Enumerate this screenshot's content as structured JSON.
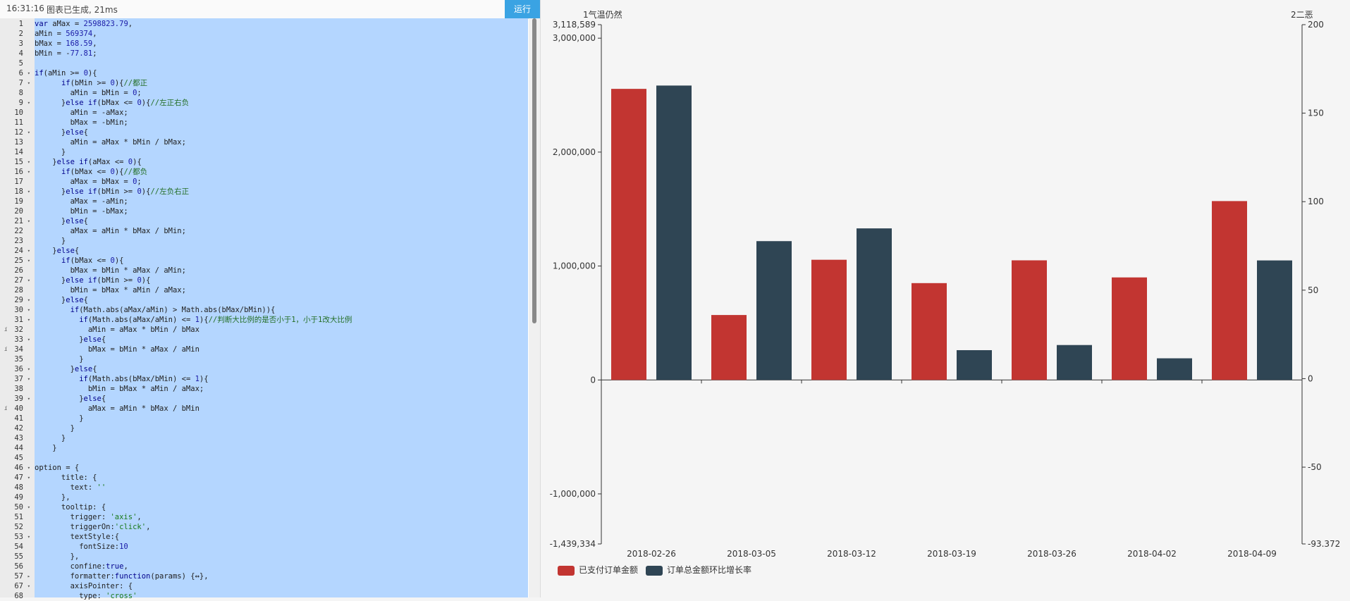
{
  "status": {
    "time": "16:31:16",
    "message": "图表已生成, 21ms"
  },
  "run_button": "运行",
  "code_lines": [
    {
      "n": "1",
      "t": "var aMax = 2598823.79,"
    },
    {
      "n": "2",
      "t": "aMin = 569374,"
    },
    {
      "n": "3",
      "t": "bMax = 168.59,"
    },
    {
      "n": "4",
      "t": "bMin = -77.81;"
    },
    {
      "n": "5",
      "t": ""
    },
    {
      "n": "6",
      "t": "if(aMin >= 0){",
      "fold": true
    },
    {
      "n": "7",
      "t": "      if(bMin >= 0){//都正",
      "fold": true
    },
    {
      "n": "8",
      "t": "        aMin = bMin = 0;"
    },
    {
      "n": "9",
      "t": "      }else if(bMax <= 0){//左正右负",
      "fold": true
    },
    {
      "n": "10",
      "t": "        aMin = -aMax;"
    },
    {
      "n": "11",
      "t": "        bMax = -bMin;"
    },
    {
      "n": "12",
      "t": "      }else{",
      "fold": true
    },
    {
      "n": "13",
      "t": "        aMin = aMax * bMin / bMax;"
    },
    {
      "n": "14",
      "t": "      }"
    },
    {
      "n": "15",
      "t": "    }else if(aMax <= 0){",
      "fold": true
    },
    {
      "n": "16",
      "t": "      if(bMax <= 0){//都负",
      "fold": true
    },
    {
      "n": "17",
      "t": "        aMax = bMax = 0;"
    },
    {
      "n": "18",
      "t": "      }else if(bMin >= 0){//左负右正",
      "fold": true
    },
    {
      "n": "19",
      "t": "        aMax = -aMin;"
    },
    {
      "n": "20",
      "t": "        bMin = -bMax;"
    },
    {
      "n": "21",
      "t": "      }else{",
      "fold": true
    },
    {
      "n": "22",
      "t": "        aMax = aMin * bMax / bMin;"
    },
    {
      "n": "23",
      "t": "      }"
    },
    {
      "n": "24",
      "t": "    }else{",
      "fold": true
    },
    {
      "n": "25",
      "t": "      if(bMax <= 0){",
      "fold": true
    },
    {
      "n": "26",
      "t": "        bMax = bMin * aMax / aMin;"
    },
    {
      "n": "27",
      "t": "      }else if(bMin >= 0){",
      "fold": true
    },
    {
      "n": "28",
      "t": "        bMin = bMax * aMin / aMax;"
    },
    {
      "n": "29",
      "t": "      }else{",
      "fold": true
    },
    {
      "n": "30",
      "t": "        if(Math.abs(aMax/aMin) > Math.abs(bMax/bMin)){",
      "fold": true
    },
    {
      "n": "31",
      "t": "          if(Math.abs(aMax/aMin) <= 1){//判断大比例的是否小于1，小于1改大比例",
      "fold": true
    },
    {
      "n": "32",
      "t": "            aMin = aMax * bMin / bMax",
      "warn": true
    },
    {
      "n": "33",
      "t": "          }else{",
      "fold": true
    },
    {
      "n": "34",
      "t": "            bMax = bMin * aMax / aMin",
      "warn": true
    },
    {
      "n": "35",
      "t": "          }"
    },
    {
      "n": "36",
      "t": "        }else{",
      "fold": true
    },
    {
      "n": "37",
      "t": "          if(Math.abs(bMax/bMin) <= 1){",
      "fold": true
    },
    {
      "n": "38",
      "t": "            bMin = bMax * aMin / aMax;"
    },
    {
      "n": "39",
      "t": "          }else{",
      "fold": true
    },
    {
      "n": "40",
      "t": "            aMax = aMin * bMax / bMin",
      "warn": true
    },
    {
      "n": "41",
      "t": "          }"
    },
    {
      "n": "42",
      "t": "        }"
    },
    {
      "n": "43",
      "t": "      }"
    },
    {
      "n": "44",
      "t": "    }"
    },
    {
      "n": "45",
      "t": ""
    },
    {
      "n": "46",
      "t": "option = {",
      "fold": true
    },
    {
      "n": "47",
      "t": "      title: {",
      "fold": true
    },
    {
      "n": "48",
      "t": "        text: ''"
    },
    {
      "n": "49",
      "t": "      },"
    },
    {
      "n": "50",
      "t": "      tooltip: {",
      "fold": true
    },
    {
      "n": "51",
      "t": "        trigger: 'axis',"
    },
    {
      "n": "52",
      "t": "        triggerOn:'click',"
    },
    {
      "n": "53",
      "t": "        textStyle:{",
      "fold": true
    },
    {
      "n": "54",
      "t": "          fontSize:10"
    },
    {
      "n": "55",
      "t": "        },"
    },
    {
      "n": "56",
      "t": "        confine:true,"
    },
    {
      "n": "57",
      "t": "        formatter:function(params) {↔},",
      "foldr": true
    },
    {
      "n": "67",
      "t": "        axisPointer: {",
      "fold": true
    },
    {
      "n": "68",
      "t": "          type: 'cross'"
    }
  ],
  "chart_data": {
    "type": "bar",
    "categories": [
      "2018-02-26",
      "2018-03-05",
      "2018-03-12",
      "2018-03-19",
      "2018-03-26",
      "2018-04-02",
      "2018-04-09"
    ],
    "y_left": {
      "name": "1气温仍然",
      "min": -1439334,
      "max": 3118589,
      "ticks": [
        -1000000,
        0,
        1000000,
        2000000,
        3000000
      ],
      "tick_labels": [
        "-1,000,000",
        "0",
        "1,000,000",
        "2,000,000",
        "3,000,000"
      ],
      "min_label": "-1,439,334",
      "max_label": "3,118,589"
    },
    "y_right": {
      "name": "2二恶",
      "min": -93.372,
      "max": 200,
      "ticks": [
        -50,
        0,
        50,
        100,
        150,
        200
      ],
      "tick_labels": [
        "-50",
        "0",
        "50",
        "100",
        "150",
        "200"
      ],
      "min_label": "-93.372"
    },
    "series": [
      {
        "name": "已支付订单金额",
        "color": "#c23531",
        "axis": "left",
        "values": [
          2555000,
          570000,
          1055000,
          850000,
          1050000,
          900000,
          1570000
        ]
      },
      {
        "name": "订单总金额环比增长率",
        "color": "#2f4554",
        "axis": "right",
        "values": [
          165.6,
          77.7,
          84.9,
          16.1,
          19.0,
          11.5,
          66.8
        ]
      }
    ]
  }
}
